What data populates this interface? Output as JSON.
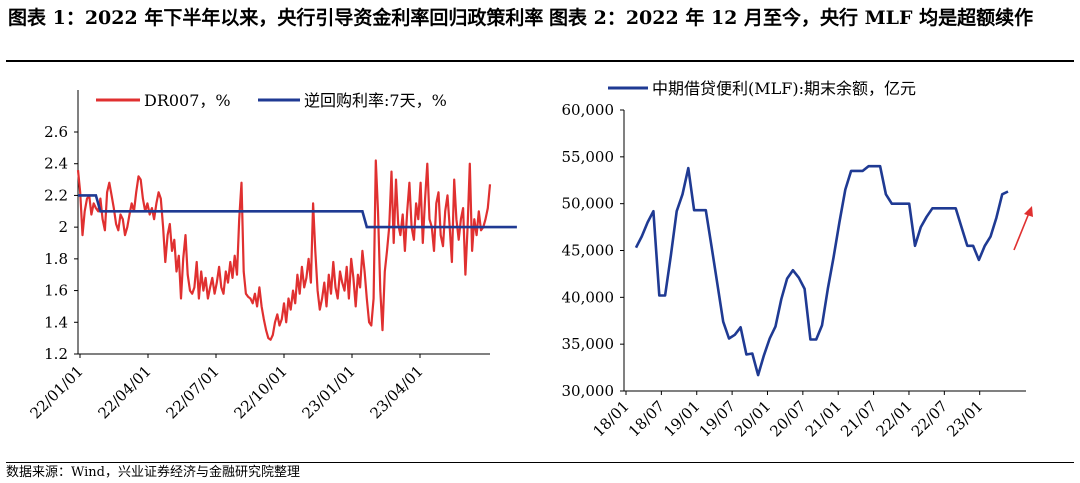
{
  "figure_titles": {
    "left": "图表 1：2022 年下半年以来，央行引导资金利率回归政策利率",
    "right": "图表 2：2022 年 12 月至今，央行 MLF 均是超额续作"
  },
  "source": "数据来源：Wind，兴业证券经济与金融研究院整理",
  "colors": {
    "red": "#e03030",
    "navy": "#1f3a93",
    "axis": "#000000"
  },
  "chart_data": [
    {
      "type": "line",
      "x_ticks": [
        "22/01/01",
        "22/04/01",
        "22/07/01",
        "22/10/01",
        "23/01/01",
        "23/04/01"
      ],
      "ylim": [
        1.2,
        2.6
      ],
      "y_ticks": [
        "1.2",
        "1.4",
        "1.6",
        "1.8",
        "2",
        "2.2",
        "2.4",
        "2.6"
      ],
      "legend_placement": "top",
      "series": [
        {
          "name": "DR007，%",
          "color": "#e03030",
          "values": [
            2.36,
            2.22,
            1.95,
            2.1,
            2.18,
            2.2,
            2.08,
            2.15,
            2.12,
            2.1,
            2.18,
            2.05,
            1.98,
            2.22,
            2.28,
            2.2,
            2.12,
            2.02,
            1.98,
            2.08,
            2.05,
            1.95,
            2.0,
            2.08,
            2.15,
            2.1,
            2.22,
            2.32,
            2.3,
            2.18,
            2.1,
            2.15,
            2.08,
            2.12,
            2.05,
            2.15,
            2.22,
            2.18,
            2.0,
            1.78,
            1.95,
            2.02,
            1.85,
            1.92,
            1.72,
            1.82,
            1.55,
            1.8,
            1.95,
            1.7,
            1.6,
            1.58,
            1.62,
            1.78,
            1.55,
            1.72,
            1.6,
            1.68,
            1.55,
            1.62,
            1.68,
            1.58,
            1.65,
            1.75,
            1.62,
            1.58,
            1.72,
            1.65,
            1.78,
            1.68,
            1.82,
            1.7,
            2.05,
            2.28,
            1.72,
            1.58,
            1.56,
            1.55,
            1.52,
            1.58,
            1.5,
            1.62,
            1.5,
            1.42,
            1.35,
            1.3,
            1.29,
            1.32,
            1.4,
            1.45,
            1.38,
            1.42,
            1.52,
            1.4,
            1.55,
            1.48,
            1.6,
            1.52,
            1.7,
            1.58,
            1.75,
            1.62,
            1.68,
            1.8,
            1.65,
            2.15,
            1.85,
            1.6,
            1.48,
            1.55,
            1.65,
            1.5,
            1.7,
            1.58,
            1.78,
            1.62,
            1.55,
            1.72,
            1.65,
            1.6,
            1.75,
            1.55,
            1.8,
            1.68,
            1.5,
            1.7,
            1.62,
            1.85,
            1.72,
            1.55,
            1.4,
            1.38,
            1.55,
            2.42,
            2.1,
            1.6,
            1.35,
            1.72,
            1.85,
            2.0,
            2.35,
            1.9,
            2.3,
            2.02,
            1.95,
            2.08,
            1.85,
            2.1,
            2.28,
            2.0,
            1.92,
            2.15,
            2.05,
            2.28,
            1.9,
            2.18,
            2.4,
            2.05,
            2.0,
            1.85,
            2.15,
            2.22,
            1.95,
            1.88,
            2.1,
            2.2,
            2.0,
            1.78,
            2.3,
            2.05,
            1.92,
            2.05,
            2.12,
            1.7,
            2.0,
            2.4,
            1.85,
            2.05,
            1.95,
            2.1,
            1.98,
            2.0,
            2.05,
            2.12,
            2.27
          ]
        },
        {
          "name": "逆回购利率:7天，%",
          "color": "#1f3a93",
          "steps": [
            [
              0,
              2.2
            ],
            [
              8,
              2.2
            ],
            [
              10,
              2.1
            ],
            [
              127,
              2.1
            ],
            [
              129,
              2.0
            ],
            [
              196,
              2.0
            ]
          ]
        }
      ]
    },
    {
      "type": "line",
      "x_ticks": [
        "18/01",
        "18/07",
        "19/01",
        "19/07",
        "20/01",
        "20/07",
        "21/01",
        "21/07",
        "22/01",
        "22/07",
        "23/01"
      ],
      "ylim": [
        30000,
        60000
      ],
      "y_ticks": [
        "30,000",
        "35,000",
        "40,000",
        "45,000",
        "50,000",
        "55,000",
        "60,000"
      ],
      "legend_placement": "top",
      "series": [
        {
          "name": "中期借贷便利(MLF):期末余额，亿元",
          "color": "#1f3a93",
          "values": [
            45300,
            46500,
            48000,
            49200,
            40200,
            40200,
            44500,
            49200,
            51000,
            53800,
            49300,
            49300,
            49300,
            45400,
            41400,
            37400,
            35600,
            36000,
            36800,
            33900,
            34000,
            31700,
            33800,
            35600,
            36900,
            39800,
            42000,
            42900,
            42100,
            40900,
            35500,
            35500,
            37000,
            40900,
            44300,
            48000,
            51500,
            53500,
            53500,
            53500,
            54000,
            54000,
            54000,
            51000,
            50000,
            50000,
            50000,
            50000,
            45500,
            47500,
            48600,
            49500,
            49500,
            49500,
            49500,
            49500,
            47500,
            45500,
            45500,
            44000,
            45500,
            46500,
            48500,
            51000,
            51300
          ]
        }
      ],
      "annotation": "red upward arrow near latest values"
    }
  ]
}
